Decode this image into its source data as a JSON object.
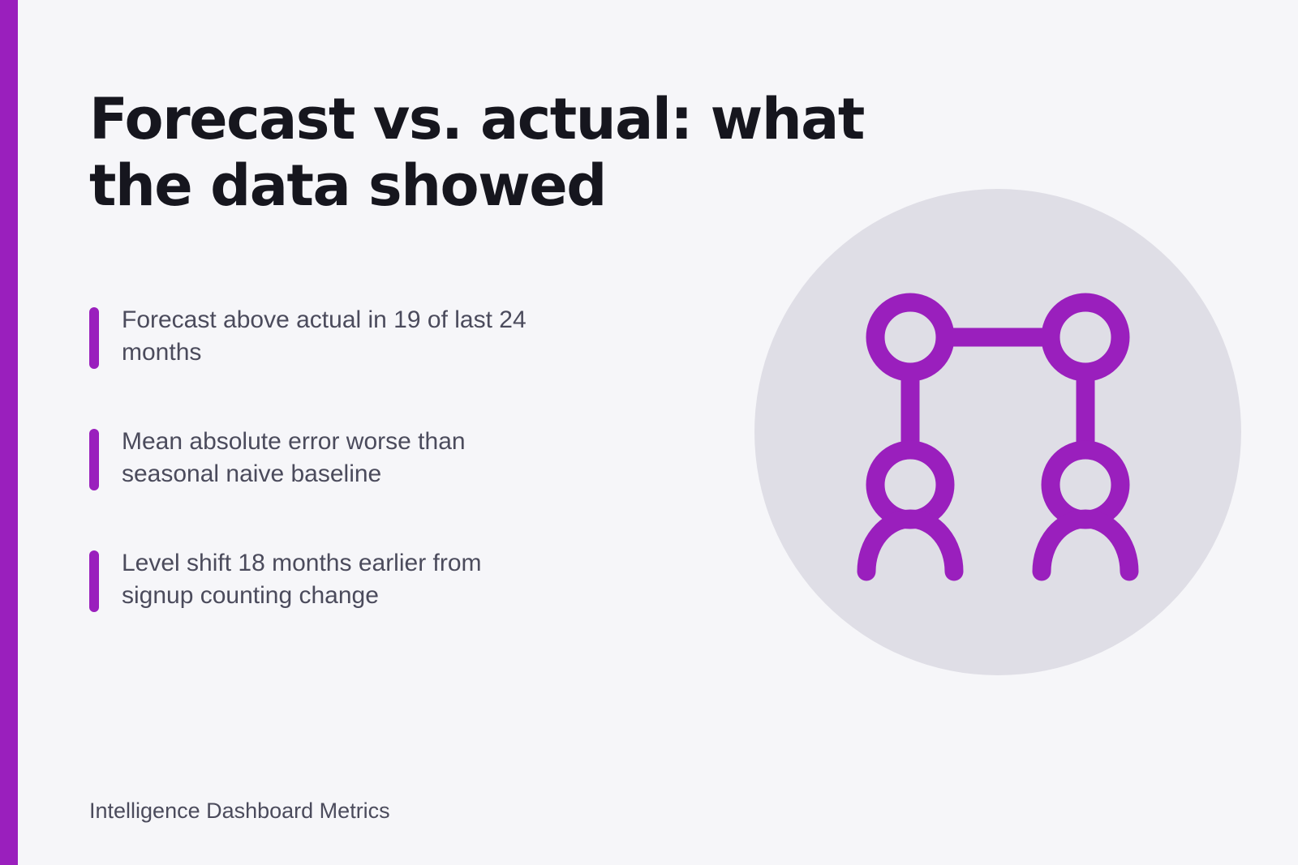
{
  "slide": {
    "title": "Forecast vs. actual: what the data showed",
    "bullets": [
      "Forecast above actual in 19 of last 24 months",
      "Mean absolute error worse than seasonal naive baseline",
      "Level shift 18 months earlier from signup counting change"
    ],
    "footer": "Intelligence Dashboard Metrics"
  },
  "illustration": {
    "icon": "connected-people-icon"
  },
  "colors": {
    "accent": "#9a1fbd",
    "background": "#f6f6f9",
    "circle": "#dfdee6",
    "title": "#16161e",
    "body_text": "#4b4b5c"
  }
}
